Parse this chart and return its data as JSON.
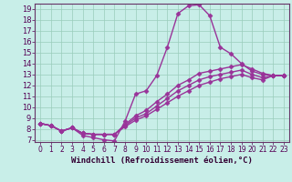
{
  "title": "",
  "xlabel": "Windchill (Refroidissement éolien,°C)",
  "ylabel": "",
  "bg_color": "#c8eee8",
  "line_color": "#993399",
  "marker": "D",
  "markersize": 2.5,
  "linewidth": 1.0,
  "xlim": [
    -0.5,
    23.5
  ],
  "ylim": [
    6.8,
    19.5
  ],
  "yticks": [
    7,
    8,
    9,
    10,
    11,
    12,
    13,
    14,
    15,
    16,
    17,
    18,
    19
  ],
  "xticks": [
    0,
    1,
    2,
    3,
    4,
    5,
    6,
    7,
    8,
    9,
    10,
    11,
    12,
    13,
    14,
    15,
    16,
    17,
    18,
    19,
    20,
    21,
    22,
    23
  ],
  "series": [
    [
      8.5,
      8.3,
      7.8,
      8.1,
      7.4,
      7.2,
      7.0,
      6.9,
      8.7,
      11.2,
      11.5,
      12.9,
      15.5,
      18.6,
      19.3,
      19.4,
      18.4,
      15.5,
      14.9,
      14.0,
      13.3,
      13.0,
      12.9,
      12.9
    ],
    [
      8.5,
      8.3,
      7.8,
      8.1,
      7.6,
      7.5,
      7.5,
      7.5,
      8.4,
      9.2,
      9.7,
      10.5,
      11.2,
      12.0,
      12.5,
      13.1,
      13.3,
      13.5,
      13.7,
      13.9,
      13.5,
      13.1,
      12.9,
      12.9
    ],
    [
      8.5,
      8.3,
      7.8,
      8.1,
      7.6,
      7.5,
      7.5,
      7.5,
      8.3,
      9.0,
      9.4,
      10.1,
      10.8,
      11.5,
      12.0,
      12.5,
      12.8,
      13.0,
      13.2,
      13.4,
      13.0,
      12.7,
      12.9,
      12.9
    ],
    [
      8.5,
      8.3,
      7.8,
      8.1,
      7.6,
      7.5,
      7.5,
      7.5,
      8.2,
      8.8,
      9.2,
      9.8,
      10.4,
      11.0,
      11.5,
      12.0,
      12.3,
      12.6,
      12.8,
      13.0,
      12.7,
      12.5,
      12.9,
      12.9
    ]
  ]
}
